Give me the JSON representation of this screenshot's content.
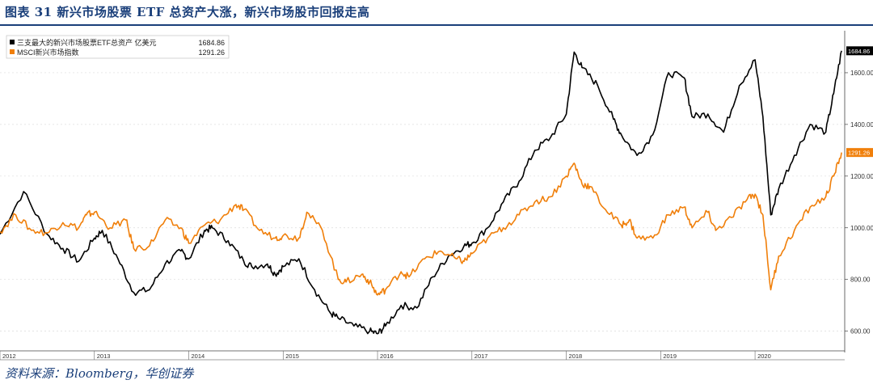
{
  "figure": {
    "title": "图表 31   新兴市场股票 ETF 总资产大涨，新兴市场股市回报走高",
    "source": "资料来源：Bloomberg，华创证券"
  },
  "colors": {
    "series1": "#000000",
    "series2": "#f07f0a",
    "text": "#1a3f7a",
    "grid": "#dcdcdc"
  },
  "chart_data": {
    "type": "line",
    "title": "",
    "xlabel": "",
    "ylabel": "",
    "x_ticks": [
      "2012",
      "2013",
      "2014",
      "2015",
      "2016",
      "2017",
      "2018",
      "2019",
      "2020"
    ],
    "ylim": [
      530,
      1750
    ],
    "y_ticks": [
      "600.00",
      "800.00",
      "1000.00",
      "1200.00",
      "1400.00",
      "1600.00"
    ],
    "grid": "horizontal dotted",
    "legend_position": "top-left",
    "series": [
      {
        "name": "三支最大的新兴市场股票ETF总资产  亿美元",
        "last_value": "1684.86",
        "color": "#000000",
        "points": [
          [
            "2012-01",
            975
          ],
          [
            "2012-04",
            1140
          ],
          [
            "2012-07",
            975
          ],
          [
            "2012-09",
            920
          ],
          [
            "2012-11",
            870
          ],
          [
            "2013-01",
            960
          ],
          [
            "2013-02",
            990
          ],
          [
            "2013-04",
            880
          ],
          [
            "2013-06",
            750
          ],
          [
            "2013-08",
            760
          ],
          [
            "2013-10",
            860
          ],
          [
            "2013-12",
            910
          ],
          [
            "2014-01",
            880
          ],
          [
            "2014-03",
            990
          ],
          [
            "2014-04",
            1000
          ],
          [
            "2014-06",
            950
          ],
          [
            "2014-08",
            870
          ],
          [
            "2014-09",
            850
          ],
          [
            "2014-11",
            860
          ],
          [
            "2014-12",
            820
          ],
          [
            "2015-01",
            850
          ],
          [
            "2015-03",
            880
          ],
          [
            "2015-05",
            760
          ],
          [
            "2015-07",
            670
          ],
          [
            "2015-08",
            650
          ],
          [
            "2015-10",
            620
          ],
          [
            "2015-12",
            600
          ],
          [
            "2016-01",
            590
          ],
          [
            "2016-02",
            620
          ],
          [
            "2016-04",
            700
          ],
          [
            "2016-06",
            690
          ],
          [
            "2016-08",
            810
          ],
          [
            "2016-10",
            890
          ],
          [
            "2016-12",
            930
          ],
          [
            "2017-01",
            940
          ],
          [
            "2017-03",
            1000
          ],
          [
            "2017-05",
            1100
          ],
          [
            "2017-07",
            1180
          ],
          [
            "2017-09",
            1300
          ],
          [
            "2017-11",
            1350
          ],
          [
            "2018-01",
            1440
          ],
          [
            "2018-02",
            1680
          ],
          [
            "2018-03",
            1620
          ],
          [
            "2018-05",
            1550
          ],
          [
            "2018-07",
            1420
          ],
          [
            "2018-08",
            1360
          ],
          [
            "2018-10",
            1280
          ],
          [
            "2018-12",
            1360
          ],
          [
            "2019-02",
            1600
          ],
          [
            "2019-04",
            1580
          ],
          [
            "2019-05",
            1430
          ],
          [
            "2019-07",
            1440
          ],
          [
            "2019-09",
            1370
          ],
          [
            "2019-11",
            1550
          ],
          [
            "2020-01",
            1650
          ],
          [
            "2020-02",
            1430
          ],
          [
            "2020-03",
            1050
          ],
          [
            "2020-04",
            1150
          ],
          [
            "2020-06",
            1280
          ],
          [
            "2020-08",
            1400
          ],
          [
            "2020-10",
            1370
          ],
          [
            "2020-11",
            1520
          ],
          [
            "2020-12",
            1684.86
          ]
        ]
      },
      {
        "name": "MSCI新兴市场指数",
        "last_value": "1291.26",
        "color": "#f07f0a",
        "points": [
          [
            "2012-01",
            985
          ],
          [
            "2012-03",
            1050
          ],
          [
            "2012-05",
            990
          ],
          [
            "2012-07",
            980
          ],
          [
            "2012-09",
            1020
          ],
          [
            "2012-11",
            1000
          ],
          [
            "2012-12",
            1050
          ],
          [
            "2013-01",
            1060
          ],
          [
            "2013-03",
            1000
          ],
          [
            "2013-05",
            1030
          ],
          [
            "2013-06",
            920
          ],
          [
            "2013-08",
            930
          ],
          [
            "2013-10",
            1030
          ],
          [
            "2013-12",
            1000
          ],
          [
            "2014-01",
            940
          ],
          [
            "2014-03",
            1010
          ],
          [
            "2014-05",
            1030
          ],
          [
            "2014-07",
            1090
          ],
          [
            "2014-08",
            1070
          ],
          [
            "2014-10",
            990
          ],
          [
            "2014-12",
            960
          ],
          [
            "2015-01",
            970
          ],
          [
            "2015-03",
            960
          ],
          [
            "2015-04",
            1060
          ],
          [
            "2015-06",
            990
          ],
          [
            "2015-08",
            800
          ],
          [
            "2015-09",
            790
          ],
          [
            "2015-11",
            820
          ],
          [
            "2015-12",
            790
          ],
          [
            "2016-01",
            740
          ],
          [
            "2016-02",
            760
          ],
          [
            "2016-04",
            830
          ],
          [
            "2016-05",
            810
          ],
          [
            "2016-07",
            880
          ],
          [
            "2016-09",
            910
          ],
          [
            "2016-11",
            880
          ],
          [
            "2016-12",
            870
          ],
          [
            "2017-01",
            900
          ],
          [
            "2017-03",
            960
          ],
          [
            "2017-05",
            1000
          ],
          [
            "2017-07",
            1050
          ],
          [
            "2017-09",
            1100
          ],
          [
            "2017-11",
            1120
          ],
          [
            "2018-01",
            1200
          ],
          [
            "2018-02",
            1250
          ],
          [
            "2018-03",
            1170
          ],
          [
            "2018-04",
            1160
          ],
          [
            "2018-06",
            1070
          ],
          [
            "2018-08",
            1010
          ],
          [
            "2018-09",
            1030
          ],
          [
            "2018-10",
            960
          ],
          [
            "2018-12",
            960
          ],
          [
            "2019-02",
            1050
          ],
          [
            "2019-04",
            1080
          ],
          [
            "2019-05",
            1000
          ],
          [
            "2019-07",
            1060
          ],
          [
            "2019-08",
            990
          ],
          [
            "2019-10",
            1040
          ],
          [
            "2019-12",
            1110
          ],
          [
            "2020-01",
            1130
          ],
          [
            "2020-02",
            1050
          ],
          [
            "2020-03",
            760
          ],
          [
            "2020-04",
            890
          ],
          [
            "2020-06",
            990
          ],
          [
            "2020-08",
            1080
          ],
          [
            "2020-10",
            1120
          ],
          [
            "2020-11",
            1200
          ],
          [
            "2020-12",
            1291.26
          ]
        ]
      }
    ]
  }
}
